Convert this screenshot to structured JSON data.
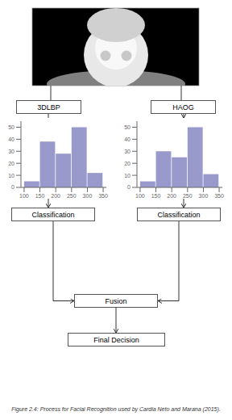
{
  "chart_data": [
    {
      "type": "histogram",
      "title": "Figure 2.4: Process for Facial Recognition used by Cardia Neto and Marana (2015).",
      "annotations": [
        "3DLBP",
        "Classification",
        "Fusion",
        "Final Decision"
      ],
      "bins": [
        100,
        150,
        200,
        250,
        300,
        350
      ],
      "values": [
        5,
        38,
        28,
        50,
        12
      ],
      "color": "#9999cc",
      "xlim": [
        90,
        360
      ],
      "ylim": [
        0,
        55
      ],
      "xticks": [
        100,
        150,
        200,
        250,
        300,
        350
      ],
      "yticks": [
        0,
        10,
        20,
        30,
        40,
        50
      ]
    },
    {
      "type": "histogram",
      "annotations": [
        "HAOG",
        "Classification"
      ],
      "bins": [
        100,
        150,
        200,
        250,
        300,
        350
      ],
      "values": [
        5,
        30,
        25,
        50,
        11
      ],
      "color": "#9999cc",
      "xlim": [
        90,
        360
      ],
      "ylim": [
        0,
        55
      ],
      "xticks": [
        100,
        150,
        200,
        250,
        300,
        350
      ],
      "yticks": [
        0,
        10,
        20,
        30,
        40,
        50
      ]
    }
  ]
}
